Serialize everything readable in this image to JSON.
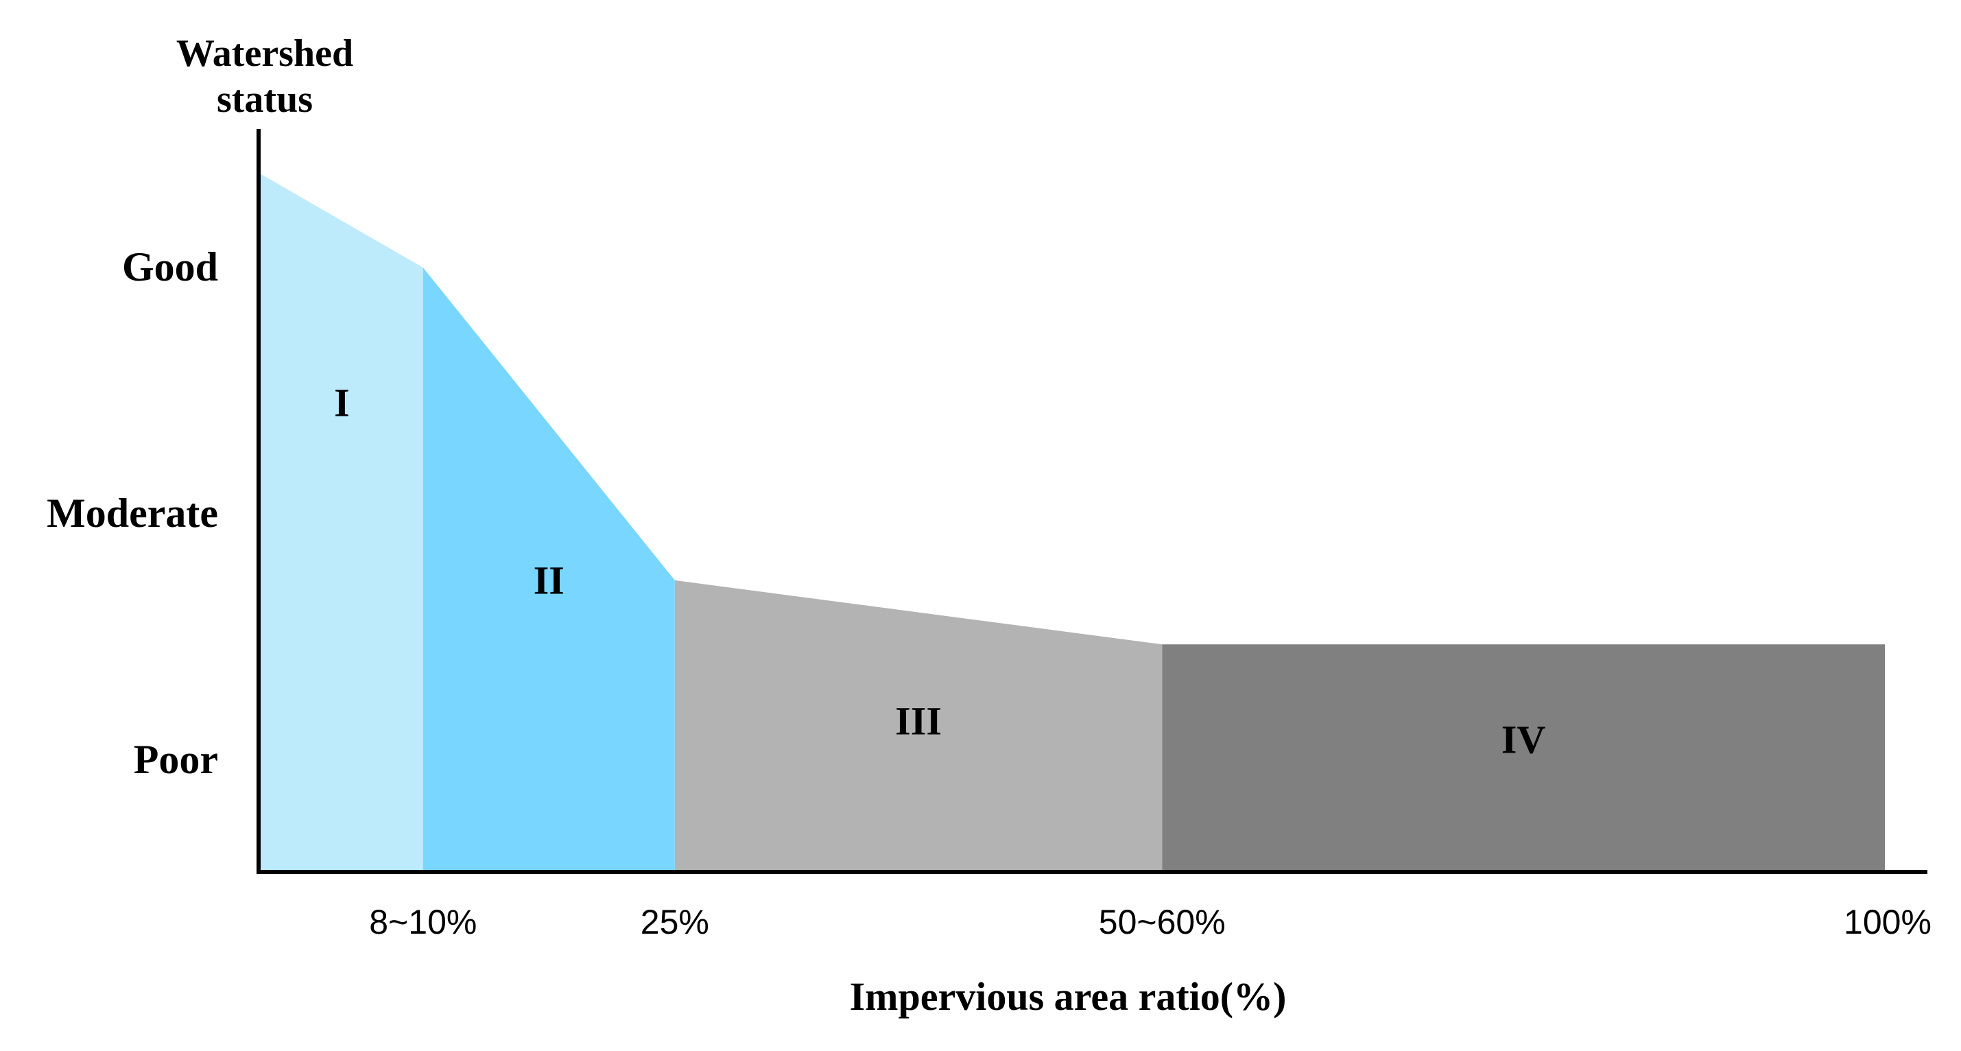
{
  "chart_data": {
    "type": "area",
    "title": "",
    "xlabel": "Impervious area ratio(%)",
    "ylabel": "Watershed status",
    "xlim": [
      0,
      100
    ],
    "x_tick_labels": [
      "8~10%",
      "25%",
      "50~60%",
      "100%"
    ],
    "x_tick_values": [
      10,
      25.5,
      55.5,
      100
    ],
    "y_tick_labels": [
      "Good",
      "Moderate",
      "Poor"
    ],
    "y_tick_values": [
      2,
      1,
      0
    ],
    "grid": false,
    "zones": [
      {
        "label": "I",
        "x_start": 0,
        "x_end": 10,
        "status_start": 2.38,
        "status_end": 2.0,
        "color": "#BDEBFB"
      },
      {
        "label": "II",
        "x_start": 10,
        "x_end": 25.5,
        "status_start": 2.0,
        "status_end": 0.73,
        "color": "#79D6FE"
      },
      {
        "label": "III",
        "x_start": 25.5,
        "x_end": 55.5,
        "status_start": 0.73,
        "status_end": 0.47,
        "color": "#B3B3B3"
      },
      {
        "label": "IV",
        "x_start": 55.5,
        "x_end": 100,
        "status_start": 0.47,
        "status_end": 0.47,
        "color": "#808080"
      }
    ]
  }
}
